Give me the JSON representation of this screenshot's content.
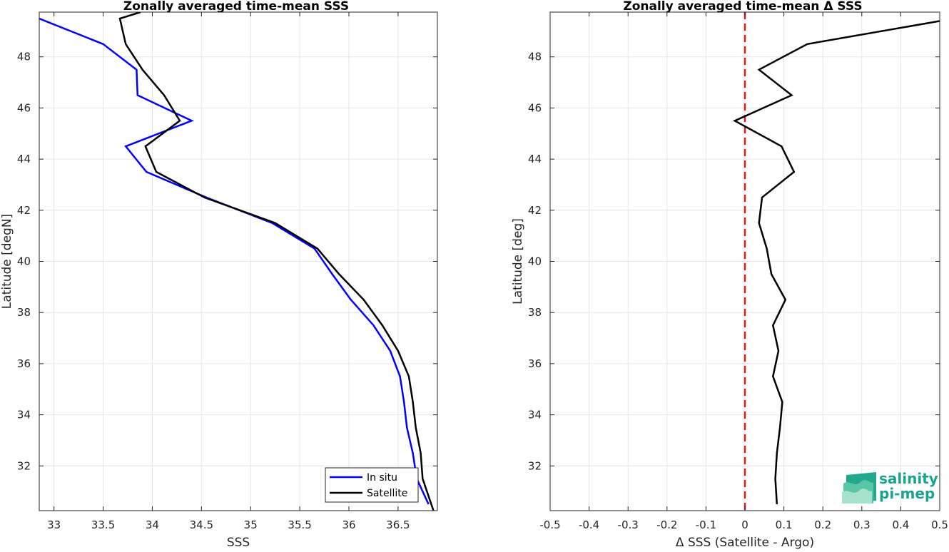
{
  "chart_data": [
    {
      "type": "line",
      "title": "Zonally averaged time-mean SSS",
      "xlabel": "SSS",
      "ylabel": "Latitude [degN]",
      "xlim": [
        32.85,
        36.9
      ],
      "ylim": [
        30.25,
        49.75
      ],
      "xticks": [
        33,
        33.5,
        34,
        34.5,
        35,
        35.5,
        36,
        36.5
      ],
      "xtick_labels": [
        "33",
        "33.5",
        "34",
        "34.5",
        "35",
        "35.5",
        "36",
        "36.5"
      ],
      "yticks": [
        32,
        34,
        36,
        38,
        40,
        42,
        44,
        46,
        48
      ],
      "ytick_labels": [
        "32",
        "34",
        "36",
        "38",
        "40",
        "42",
        "44",
        "46",
        "48"
      ],
      "grid": true,
      "legend_position": "bottom-right",
      "series": [
        {
          "name": "In situ",
          "color": "#0000ff",
          "points": [
            [
              36.81,
              30.5
            ],
            [
              36.69,
              31.5
            ],
            [
              36.65,
              32.5
            ],
            [
              36.59,
              33.5
            ],
            [
              36.56,
              34.5
            ],
            [
              36.52,
              35.5
            ],
            [
              36.42,
              36.5
            ],
            [
              36.25,
              37.5
            ],
            [
              36.02,
              38.5
            ],
            [
              35.83,
              39.5
            ],
            [
              35.65,
              40.5
            ],
            [
              35.22,
              41.5
            ],
            [
              34.55,
              42.5
            ],
            [
              33.94,
              43.5
            ],
            [
              33.73,
              44.5
            ],
            [
              34.4,
              45.5
            ],
            [
              33.85,
              46.5
            ],
            [
              33.84,
              47.5
            ],
            [
              33.5,
              48.5
            ],
            [
              32.85,
              49.5
            ]
          ]
        },
        {
          "name": "Satellite",
          "color": "#000000",
          "points": [
            [
              36.86,
              30.25
            ],
            [
              36.75,
              31.5
            ],
            [
              36.73,
              32.5
            ],
            [
              36.68,
              33.5
            ],
            [
              36.65,
              34.5
            ],
            [
              36.61,
              35.5
            ],
            [
              36.5,
              36.5
            ],
            [
              36.34,
              37.5
            ],
            [
              36.15,
              38.5
            ],
            [
              35.9,
              39.5
            ],
            [
              35.68,
              40.5
            ],
            [
              35.25,
              41.5
            ],
            [
              34.53,
              42.5
            ],
            [
              34.04,
              43.5
            ],
            [
              33.93,
              44.5
            ],
            [
              34.28,
              45.5
            ],
            [
              34.12,
              46.5
            ],
            [
              33.9,
              47.5
            ],
            [
              33.73,
              48.5
            ],
            [
              33.67,
              49.5
            ],
            [
              33.88,
              49.75
            ]
          ]
        }
      ]
    },
    {
      "type": "line",
      "title": "Zonally averaged time-mean Δ SSS",
      "xlabel": "Δ SSS (Satellite - Argo)",
      "ylabel": "Latitude [deg]",
      "xlim": [
        -0.5,
        0.5
      ],
      "ylim": [
        30.25,
        49.75
      ],
      "xticks": [
        -0.5,
        -0.4,
        -0.3,
        -0.2,
        -0.1,
        0,
        0.1,
        0.2,
        0.3,
        0.4,
        0.5
      ],
      "xtick_labels": [
        "-0.5",
        "-0.4",
        "-0.3",
        "-0.2",
        "-0.1",
        "0",
        "0.1",
        "0.2",
        "0.3",
        "0.4",
        "0.5"
      ],
      "yticks": [
        32,
        34,
        36,
        38,
        40,
        42,
        44,
        46,
        48
      ],
      "ytick_labels": [
        "32",
        "34",
        "36",
        "38",
        "40",
        "42",
        "44",
        "46",
        "48"
      ],
      "grid": true,
      "reference_line": {
        "x": 0,
        "color": "#e31a1c",
        "style": "dashed"
      },
      "series": [
        {
          "name": "",
          "color": "#000000",
          "points": [
            [
              0.082,
              30.5
            ],
            [
              0.078,
              31.5
            ],
            [
              0.082,
              32.5
            ],
            [
              0.09,
              33.5
            ],
            [
              0.096,
              34.5
            ],
            [
              0.072,
              35.5
            ],
            [
              0.086,
              36.5
            ],
            [
              0.072,
              37.5
            ],
            [
              0.104,
              38.5
            ],
            [
              0.068,
              39.5
            ],
            [
              0.056,
              40.5
            ],
            [
              0.036,
              41.5
            ],
            [
              0.044,
              42.5
            ],
            [
              0.126,
              43.5
            ],
            [
              0.094,
              44.5
            ],
            [
              -0.026,
              45.5
            ],
            [
              0.12,
              46.5
            ],
            [
              0.036,
              47.5
            ],
            [
              0.16,
              48.5
            ],
            [
              0.5,
              49.4
            ]
          ]
        }
      ]
    }
  ],
  "logo": {
    "line1": "salinity",
    "line2": "pi-mep",
    "color": "#1aa38f"
  }
}
